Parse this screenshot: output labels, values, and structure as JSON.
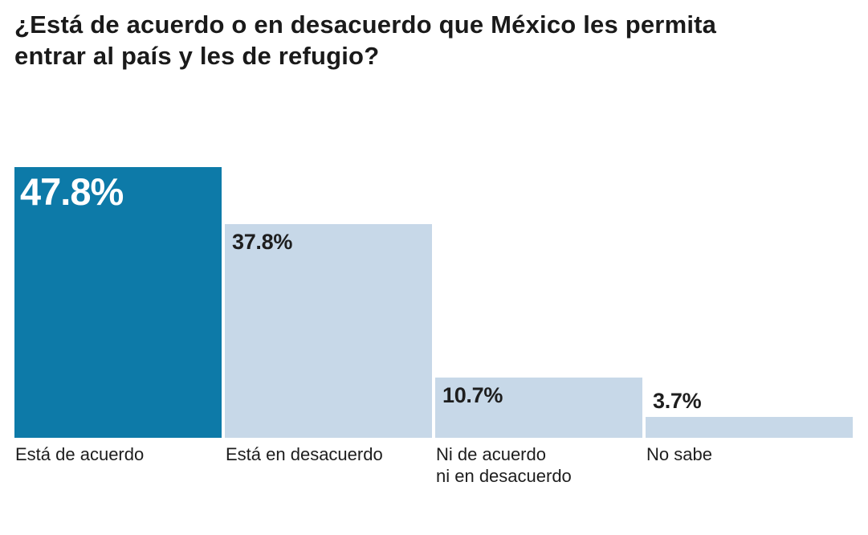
{
  "page": {
    "background": "#FFFFFF"
  },
  "colors": {
    "accent_bar": "#0D7AA8",
    "muted_bar": "#C7D8E8",
    "title_text": "#1A1A1A",
    "label_dark": "#1E1E1E",
    "label_light": "#FFFFFF"
  },
  "header": {
    "title": "¿Está de acuerdo o en desacuerdo que México les permita\nentrar al país y les de refugio?"
  },
  "chart_data": {
    "type": "bar",
    "title": "¿Está de acuerdo o en desacuerdo que México les permita entrar al país y les de refugio?",
    "orientation": "vertical",
    "categories": [
      "Está de acuerdo",
      "Está en desacuerdo",
      "Ni de acuerdo\nni en desacuerdo",
      "No sabe"
    ],
    "values": [
      47.8,
      37.8,
      10.7,
      3.7
    ],
    "value_labels": [
      "47.8%",
      "37.8%",
      "10.7%",
      "3.7%"
    ],
    "unit": "%",
    "xlabel": "",
    "ylabel": "",
    "ylim": [
      0,
      47.8
    ],
    "grid": false,
    "legend": false,
    "bars": [
      {
        "category": "Está de acuerdo",
        "value": 47.8,
        "label": "47.8%",
        "color": "#0D7AA8",
        "label_color": "#FFFFFF",
        "label_position": "inside",
        "label_size": "large"
      },
      {
        "category": "Está en desacuerdo",
        "value": 37.8,
        "label": "37.8%",
        "color": "#C7D8E8",
        "label_color": "#1E1E1E",
        "label_position": "inside",
        "label_size": "small"
      },
      {
        "category": "Ni de acuerdo\nni en desacuerdo",
        "value": 10.7,
        "label": "10.7%",
        "color": "#C7D8E8",
        "label_color": "#1E1E1E",
        "label_position": "inside",
        "label_size": "small"
      },
      {
        "category": "No sabe",
        "value": 3.7,
        "label": "3.7%",
        "color": "#C7D8E8",
        "label_color": "#1E1E1E",
        "label_position": "above",
        "label_size": "small"
      }
    ]
  }
}
